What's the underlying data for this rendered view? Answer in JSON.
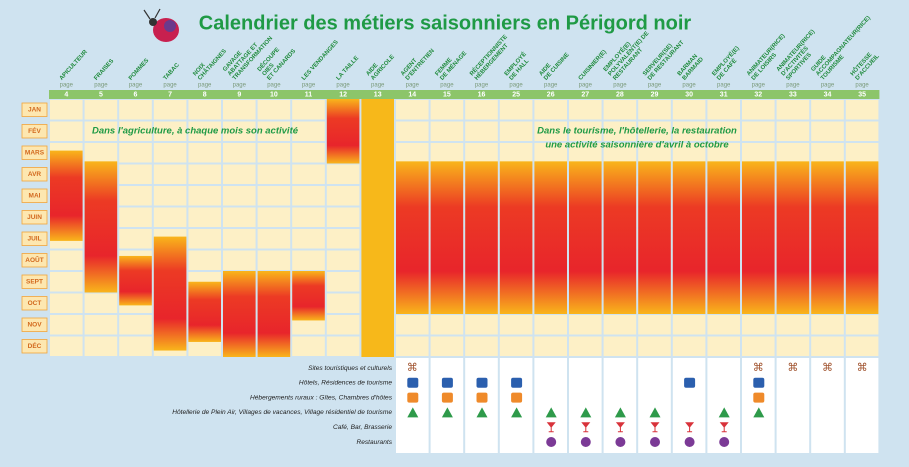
{
  "title": "Calendrier des métiers saisonniers en Périgord noir",
  "page_label": "page",
  "months": [
    "JAN",
    "FÉV",
    "MARS",
    "AVR",
    "MAI",
    "JUIN",
    "JUIL",
    "AOÛT",
    "SEPT",
    "OCT",
    "NOV",
    "DÉC"
  ],
  "annotations": [
    "Dans l'agriculture, à chaque mois son activité",
    "Dans le tourisme, l'hôtellerie, la restauration",
    "une activité saisonnière d'avril à octobre"
  ],
  "places": [
    "Sites touristiques et culturels",
    "Hôtels, Résidences de tourisme",
    "Hébergements ruraux : Gîtes, Chambres d'hôtes",
    "Hôtellerie de Plein Air, Villages de vacances, Village résidentiel de tourisme",
    "Café, Bar, Brasserie",
    "Restaurants"
  ],
  "jobs": [
    {
      "label": [
        "APICULTEUR"
      ],
      "page": "4",
      "start": 2.4,
      "end": 6.6
    },
    {
      "label": [
        "FRAISES"
      ],
      "page": "5",
      "start": 2.9,
      "end": 9
    },
    {
      "label": [
        "POMMES"
      ],
      "page": "6",
      "start": 7.3,
      "end": 9.6
    },
    {
      "label": [
        "TABAC"
      ],
      "page": "7",
      "start": 6.4,
      "end": 11.7
    },
    {
      "label": [
        "NOIX",
        "CHÂTAIGNES"
      ],
      "page": "8",
      "start": 8.5,
      "end": 11.3
    },
    {
      "label": [
        "GAVAGE",
        "ABATTAGE ET",
        "TRANSFORMATION"
      ],
      "page": "9",
      "start": 8,
      "end": 12
    },
    {
      "label": [
        "DÉCOUPE",
        "OIES",
        "ET CANARDS"
      ],
      "page": "10",
      "start": 8,
      "end": 12
    },
    {
      "label": [
        "LES VENDANGES"
      ],
      "page": "11",
      "start": 8,
      "end": 10.3
    },
    {
      "label": [
        "LA TAILLE"
      ],
      "page": "12",
      "start": 0,
      "end": 3
    },
    {
      "label": [
        "AIDE",
        "AGRICOLE"
      ],
      "page": "13",
      "start": 0,
      "end": 12,
      "color": "#f7b81a"
    },
    {
      "label": [
        "AGENT",
        "D'ENTRETIEN"
      ],
      "page": "14",
      "start": 2.9,
      "end": 10,
      "places": [
        0,
        1,
        2,
        3
      ]
    },
    {
      "label": [
        "FEMME",
        "DE MÉNAGE"
      ],
      "page": "15",
      "start": 2.9,
      "end": 10,
      "places": [
        1,
        2,
        3
      ]
    },
    {
      "label": [
        "RÉCEPTIONNISTE",
        "HÉBERGEMENT"
      ],
      "page": "16",
      "start": 2.9,
      "end": 10,
      "places": [
        1,
        2,
        3
      ]
    },
    {
      "label": [
        "EMPLOYÉ",
        "DE HALL"
      ],
      "page": "25",
      "start": 2.9,
      "end": 10,
      "places": [
        1,
        2,
        3
      ]
    },
    {
      "label": [
        "AIDE",
        "DE CUISINE"
      ],
      "page": "26",
      "start": 2.9,
      "end": 10,
      "places": [
        3,
        4,
        5
      ]
    },
    {
      "label": [
        "CUISINIER(E)"
      ],
      "page": "27",
      "start": 2.9,
      "end": 10,
      "places": [
        3,
        4,
        5
      ]
    },
    {
      "label": [
        "EMPLOYÉ(E)",
        "POLYVALENT(E) DE",
        "RESTAURANT"
      ],
      "page": "28",
      "start": 2.9,
      "end": 10,
      "places": [
        3,
        4,
        5
      ]
    },
    {
      "label": [
        "SERVEUR(SE)",
        "DE RESTAURANT"
      ],
      "page": "29",
      "start": 2.9,
      "end": 10,
      "places": [
        3,
        4,
        5
      ]
    },
    {
      "label": [
        "BARMAN",
        "BARMAID"
      ],
      "page": "30",
      "start": 2.9,
      "end": 10,
      "places": [
        1,
        4,
        5
      ]
    },
    {
      "label": [
        "EMPLOYÉ(E)",
        "DE CAFÉ"
      ],
      "page": "31",
      "start": 2.9,
      "end": 10,
      "places": [
        3,
        4,
        5
      ]
    },
    {
      "label": [
        "ANIMATEUR(RICE)",
        "DE LOISIRS"
      ],
      "page": "32",
      "start": 2.9,
      "end": 10,
      "places": [
        0,
        1,
        2,
        3
      ]
    },
    {
      "label": [
        "ANIMATEUR(RICE)",
        "D'ACTIVITÉS",
        "SPORTIVES"
      ],
      "page": "33",
      "start": 2.9,
      "end": 10,
      "places": [
        0
      ]
    },
    {
      "label": [
        "GUIDE",
        "ACCOMPAGNATEUR(RICE)",
        "TOURISME"
      ],
      "page": "34",
      "start": 2.9,
      "end": 10,
      "places": [
        0
      ]
    },
    {
      "label": [
        "HÔTESSE",
        "D'ACCUEIL"
      ],
      "page": "35",
      "start": 2.9,
      "end": 10,
      "places": [
        0
      ]
    }
  ]
}
